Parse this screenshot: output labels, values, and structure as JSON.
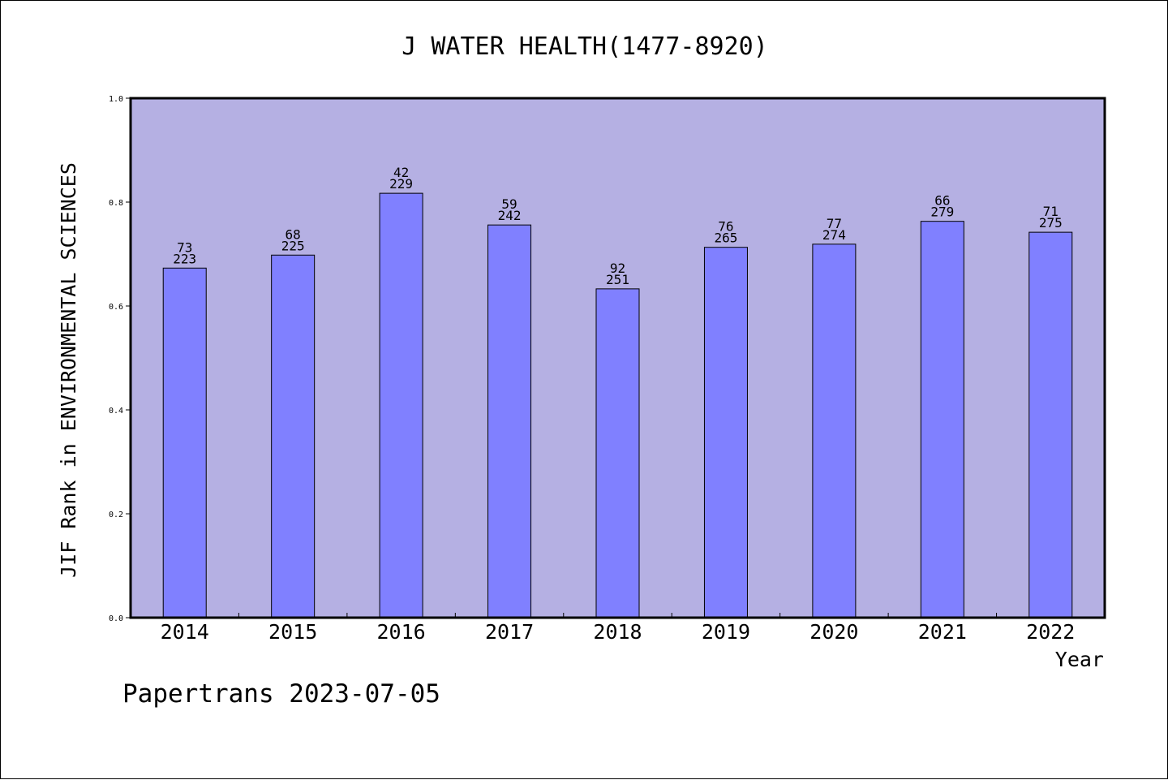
{
  "chart_data": {
    "type": "bar",
    "title": "J WATER HEALTH(1477-8920)",
    "xlabel": "Year",
    "ylabel": "JIF Rank in ENVIRONMENTAL SCIENCES",
    "ylim": [
      0,
      1.0
    ],
    "yticks": [
      "0.0",
      "0.2",
      "0.4",
      "0.6",
      "0.8",
      "1.0"
    ],
    "categories": [
      "2014",
      "2015",
      "2016",
      "2017",
      "2018",
      "2019",
      "2020",
      "2021",
      "2022"
    ],
    "values": [
      0.673,
      0.698,
      0.817,
      0.756,
      0.633,
      0.713,
      0.719,
      0.763,
      0.742
    ],
    "rank": [
      "73",
      "68",
      "42",
      "59",
      "92",
      "76",
      "77",
      "66",
      "71"
    ],
    "total": [
      "223",
      "225",
      "229",
      "242",
      "251",
      "265",
      "274",
      "279",
      "275"
    ],
    "grid": false,
    "colors": {
      "plot_bg": "#b5b0e3",
      "bar": "#8080ff",
      "bar_stroke": "#000000"
    }
  },
  "footer": "Papertrans 2023-07-05"
}
